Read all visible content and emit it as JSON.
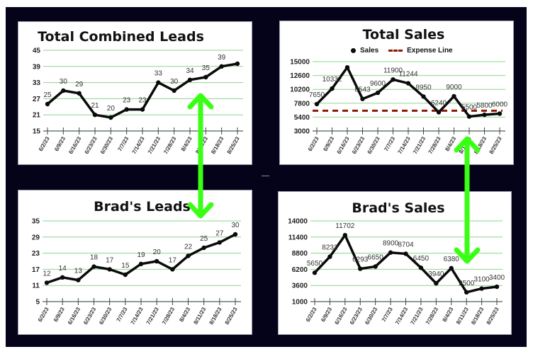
{
  "dates": [
    "6/2/23",
    "6/9/23",
    "6/16/23",
    "6/23/23",
    "6/30/23",
    "7/7/23",
    "7/14/23",
    "7/21/23",
    "7/28/23",
    "8/4/23",
    "8/11/23",
    "8/18/23",
    "8/25/23"
  ],
  "colors": {
    "background": "#05031a",
    "panel": "#ffffff",
    "line": "#0a0a0a",
    "grid": "#8fd48a",
    "axis": "#6b7f6b",
    "arrow": "#39ff14",
    "expense": "#8b1a00"
  },
  "chart_data": [
    {
      "type": "line",
      "title": "Total Combined Leads",
      "categories": [
        "6/2/23",
        "6/9/23",
        "6/16/23",
        "6/23/23",
        "6/30/23",
        "7/7/23",
        "7/14/23",
        "7/21/23",
        "7/28/23",
        "8/4/23",
        "8/11/23",
        "8/18/23",
        "8/25/23"
      ],
      "series": [
        {
          "name": "Leads",
          "values": [
            25,
            30,
            29,
            21,
            20,
            23,
            23,
            33,
            30,
            34,
            35,
            39,
            40
          ]
        }
      ],
      "labels": [
        "25",
        "30",
        "29",
        "21",
        "20",
        "23",
        "23",
        "33",
        "30",
        "34",
        "35",
        "39",
        ""
      ],
      "yticks": [
        15,
        21,
        27,
        33,
        39,
        45
      ],
      "ylim": [
        15,
        45
      ],
      "xlabel": "",
      "ylabel": "",
      "grid": true,
      "legend": null
    },
    {
      "type": "line",
      "title": "Total Sales",
      "categories": [
        "6/2/23",
        "6/9/23",
        "6/16/23",
        "6/23/23",
        "6/30/23",
        "7/7/23",
        "7/14/23",
        "7/21/23",
        "7/28/23",
        "8/4/23",
        "8/11/23",
        "8/18/23",
        "8/25/23"
      ],
      "series": [
        {
          "name": "Sales",
          "values": [
            7650,
            10332,
            14000,
            8543,
            9600,
            11900,
            11244,
            8950,
            6240,
            9000,
            5500,
            5800,
            6000
          ]
        },
        {
          "name": "Expense Line",
          "values": [
            6500,
            6500,
            6500,
            6500,
            6500,
            6500,
            6500,
            6500,
            6500,
            6500,
            6500,
            6500,
            6500
          ],
          "style": "dashed"
        }
      ],
      "labels": [
        "7650",
        "10332",
        "",
        "8543",
        "9600",
        "11900",
        "11244",
        "8950",
        "6240",
        "9000",
        "5500",
        "5800",
        "6000"
      ],
      "yticks": [
        3000,
        5400,
        7800,
        10200,
        12600,
        15000
      ],
      "ylim": [
        3000,
        15000
      ],
      "xlabel": "",
      "ylabel": "",
      "grid": true,
      "legend": "top"
    },
    {
      "type": "line",
      "title": "Brad's Leads",
      "categories": [
        "6/2/23",
        "6/9/23",
        "6/16/23",
        "6/23/23",
        "6/30/23",
        "7/7/23",
        "7/14/23",
        "7/21/23",
        "7/28/23",
        "8/4/23",
        "8/11/23",
        "8/18/23",
        "8/25/23"
      ],
      "series": [
        {
          "name": "Leads",
          "values": [
            12,
            14,
            13,
            18,
            17,
            15,
            19,
            20,
            17,
            22,
            25,
            27,
            30
          ]
        }
      ],
      "labels": [
        "12",
        "14",
        "13",
        "18",
        "17",
        "15",
        "19",
        "20",
        "17",
        "22",
        "25",
        "27",
        "30"
      ],
      "yticks": [
        5,
        11,
        17,
        23,
        29,
        35
      ],
      "ylim": [
        5,
        35
      ],
      "xlabel": "",
      "ylabel": "",
      "grid": true,
      "legend": null
    },
    {
      "type": "line",
      "title": "Brad's Sales",
      "categories": [
        "6/2/23",
        "6/9/23",
        "6/16/23",
        "6/23/23",
        "6/30/23",
        "7/7/23",
        "7/14/23",
        "7/21/23",
        "7/28/23",
        "8/4/23",
        "8/11/23",
        "8/18/23",
        "8/25/23"
      ],
      "series": [
        {
          "name": "Sales",
          "values": [
            5650,
            8232,
            11702,
            6293,
            6650,
            8900,
            8704,
            6450,
            3940,
            6380,
            2500,
            3100,
            3400
          ]
        }
      ],
      "labels": [
        "5650",
        "8232",
        "11702",
        "6293",
        "6650",
        "8900",
        "8704",
        "6450",
        "3940",
        "6380",
        "2500",
        "3100",
        "3400"
      ],
      "yticks": [
        1000,
        3600,
        6200,
        8800,
        11400,
        14000
      ],
      "ylim": [
        1000,
        14000
      ],
      "xlabel": "",
      "ylabel": "",
      "grid": true,
      "legend": null
    }
  ],
  "panels": {
    "total_leads": {
      "title": "Total Combined Leads"
    },
    "total_sales": {
      "title": "Total Sales",
      "legend_sales": "Sales",
      "legend_expense": "Expense Line"
    },
    "brad_leads": {
      "title": "Brad's Leads"
    },
    "brad_sales": {
      "title": "Brad's Sales"
    }
  },
  "annotations": [
    {
      "type": "double-arrow",
      "between": [
        "Total Combined Leads",
        "Brad's Leads"
      ],
      "color": "#39ff14"
    },
    {
      "type": "double-arrow",
      "between": [
        "Total Sales",
        "Brad's Sales"
      ],
      "color": "#39ff14"
    }
  ]
}
